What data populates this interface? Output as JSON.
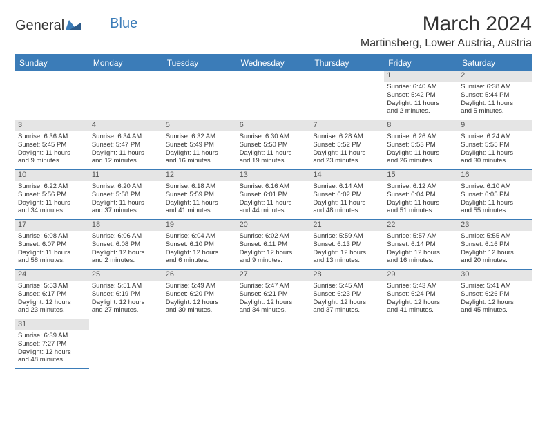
{
  "logo": {
    "general": "General",
    "blue": "Blue"
  },
  "title": "March 2024",
  "location": "Martinsberg, Lower Austria, Austria",
  "colors": {
    "header_bg": "#3b7cb8",
    "header_text": "#ffffff",
    "daynum_bg": "#e5e5e5",
    "border": "#3b7cb8",
    "text": "#333333",
    "background": "#ffffff"
  },
  "typography": {
    "title_fontsize": 30,
    "location_fontsize": 16,
    "header_fontsize": 12,
    "cell_fontsize": 9.5,
    "daynum_fontsize": 11
  },
  "layout": {
    "columns": 7,
    "rows": 6,
    "leading_blanks": 5
  },
  "weekdays": [
    "Sunday",
    "Monday",
    "Tuesday",
    "Wednesday",
    "Thursday",
    "Friday",
    "Saturday"
  ],
  "days": [
    {
      "n": "1",
      "lines": [
        "Sunrise: 6:40 AM",
        "Sunset: 5:42 PM",
        "Daylight: 11 hours",
        "and 2 minutes."
      ]
    },
    {
      "n": "2",
      "lines": [
        "Sunrise: 6:38 AM",
        "Sunset: 5:44 PM",
        "Daylight: 11 hours",
        "and 5 minutes."
      ]
    },
    {
      "n": "3",
      "lines": [
        "Sunrise: 6:36 AM",
        "Sunset: 5:45 PM",
        "Daylight: 11 hours",
        "and 9 minutes."
      ]
    },
    {
      "n": "4",
      "lines": [
        "Sunrise: 6:34 AM",
        "Sunset: 5:47 PM",
        "Daylight: 11 hours",
        "and 12 minutes."
      ]
    },
    {
      "n": "5",
      "lines": [
        "Sunrise: 6:32 AM",
        "Sunset: 5:49 PM",
        "Daylight: 11 hours",
        "and 16 minutes."
      ]
    },
    {
      "n": "6",
      "lines": [
        "Sunrise: 6:30 AM",
        "Sunset: 5:50 PM",
        "Daylight: 11 hours",
        "and 19 minutes."
      ]
    },
    {
      "n": "7",
      "lines": [
        "Sunrise: 6:28 AM",
        "Sunset: 5:52 PM",
        "Daylight: 11 hours",
        "and 23 minutes."
      ]
    },
    {
      "n": "8",
      "lines": [
        "Sunrise: 6:26 AM",
        "Sunset: 5:53 PM",
        "Daylight: 11 hours",
        "and 26 minutes."
      ]
    },
    {
      "n": "9",
      "lines": [
        "Sunrise: 6:24 AM",
        "Sunset: 5:55 PM",
        "Daylight: 11 hours",
        "and 30 minutes."
      ]
    },
    {
      "n": "10",
      "lines": [
        "Sunrise: 6:22 AM",
        "Sunset: 5:56 PM",
        "Daylight: 11 hours",
        "and 34 minutes."
      ]
    },
    {
      "n": "11",
      "lines": [
        "Sunrise: 6:20 AM",
        "Sunset: 5:58 PM",
        "Daylight: 11 hours",
        "and 37 minutes."
      ]
    },
    {
      "n": "12",
      "lines": [
        "Sunrise: 6:18 AM",
        "Sunset: 5:59 PM",
        "Daylight: 11 hours",
        "and 41 minutes."
      ]
    },
    {
      "n": "13",
      "lines": [
        "Sunrise: 6:16 AM",
        "Sunset: 6:01 PM",
        "Daylight: 11 hours",
        "and 44 minutes."
      ]
    },
    {
      "n": "14",
      "lines": [
        "Sunrise: 6:14 AM",
        "Sunset: 6:02 PM",
        "Daylight: 11 hours",
        "and 48 minutes."
      ]
    },
    {
      "n": "15",
      "lines": [
        "Sunrise: 6:12 AM",
        "Sunset: 6:04 PM",
        "Daylight: 11 hours",
        "and 51 minutes."
      ]
    },
    {
      "n": "16",
      "lines": [
        "Sunrise: 6:10 AM",
        "Sunset: 6:05 PM",
        "Daylight: 11 hours",
        "and 55 minutes."
      ]
    },
    {
      "n": "17",
      "lines": [
        "Sunrise: 6:08 AM",
        "Sunset: 6:07 PM",
        "Daylight: 11 hours",
        "and 58 minutes."
      ]
    },
    {
      "n": "18",
      "lines": [
        "Sunrise: 6:06 AM",
        "Sunset: 6:08 PM",
        "Daylight: 12 hours",
        "and 2 minutes."
      ]
    },
    {
      "n": "19",
      "lines": [
        "Sunrise: 6:04 AM",
        "Sunset: 6:10 PM",
        "Daylight: 12 hours",
        "and 6 minutes."
      ]
    },
    {
      "n": "20",
      "lines": [
        "Sunrise: 6:02 AM",
        "Sunset: 6:11 PM",
        "Daylight: 12 hours",
        "and 9 minutes."
      ]
    },
    {
      "n": "21",
      "lines": [
        "Sunrise: 5:59 AM",
        "Sunset: 6:13 PM",
        "Daylight: 12 hours",
        "and 13 minutes."
      ]
    },
    {
      "n": "22",
      "lines": [
        "Sunrise: 5:57 AM",
        "Sunset: 6:14 PM",
        "Daylight: 12 hours",
        "and 16 minutes."
      ]
    },
    {
      "n": "23",
      "lines": [
        "Sunrise: 5:55 AM",
        "Sunset: 6:16 PM",
        "Daylight: 12 hours",
        "and 20 minutes."
      ]
    },
    {
      "n": "24",
      "lines": [
        "Sunrise: 5:53 AM",
        "Sunset: 6:17 PM",
        "Daylight: 12 hours",
        "and 23 minutes."
      ]
    },
    {
      "n": "25",
      "lines": [
        "Sunrise: 5:51 AM",
        "Sunset: 6:19 PM",
        "Daylight: 12 hours",
        "and 27 minutes."
      ]
    },
    {
      "n": "26",
      "lines": [
        "Sunrise: 5:49 AM",
        "Sunset: 6:20 PM",
        "Daylight: 12 hours",
        "and 30 minutes."
      ]
    },
    {
      "n": "27",
      "lines": [
        "Sunrise: 5:47 AM",
        "Sunset: 6:21 PM",
        "Daylight: 12 hours",
        "and 34 minutes."
      ]
    },
    {
      "n": "28",
      "lines": [
        "Sunrise: 5:45 AM",
        "Sunset: 6:23 PM",
        "Daylight: 12 hours",
        "and 37 minutes."
      ]
    },
    {
      "n": "29",
      "lines": [
        "Sunrise: 5:43 AM",
        "Sunset: 6:24 PM",
        "Daylight: 12 hours",
        "and 41 minutes."
      ]
    },
    {
      "n": "30",
      "lines": [
        "Sunrise: 5:41 AM",
        "Sunset: 6:26 PM",
        "Daylight: 12 hours",
        "and 45 minutes."
      ]
    },
    {
      "n": "31",
      "lines": [
        "Sunrise: 6:39 AM",
        "Sunset: 7:27 PM",
        "Daylight: 12 hours",
        "and 48 minutes."
      ]
    }
  ]
}
